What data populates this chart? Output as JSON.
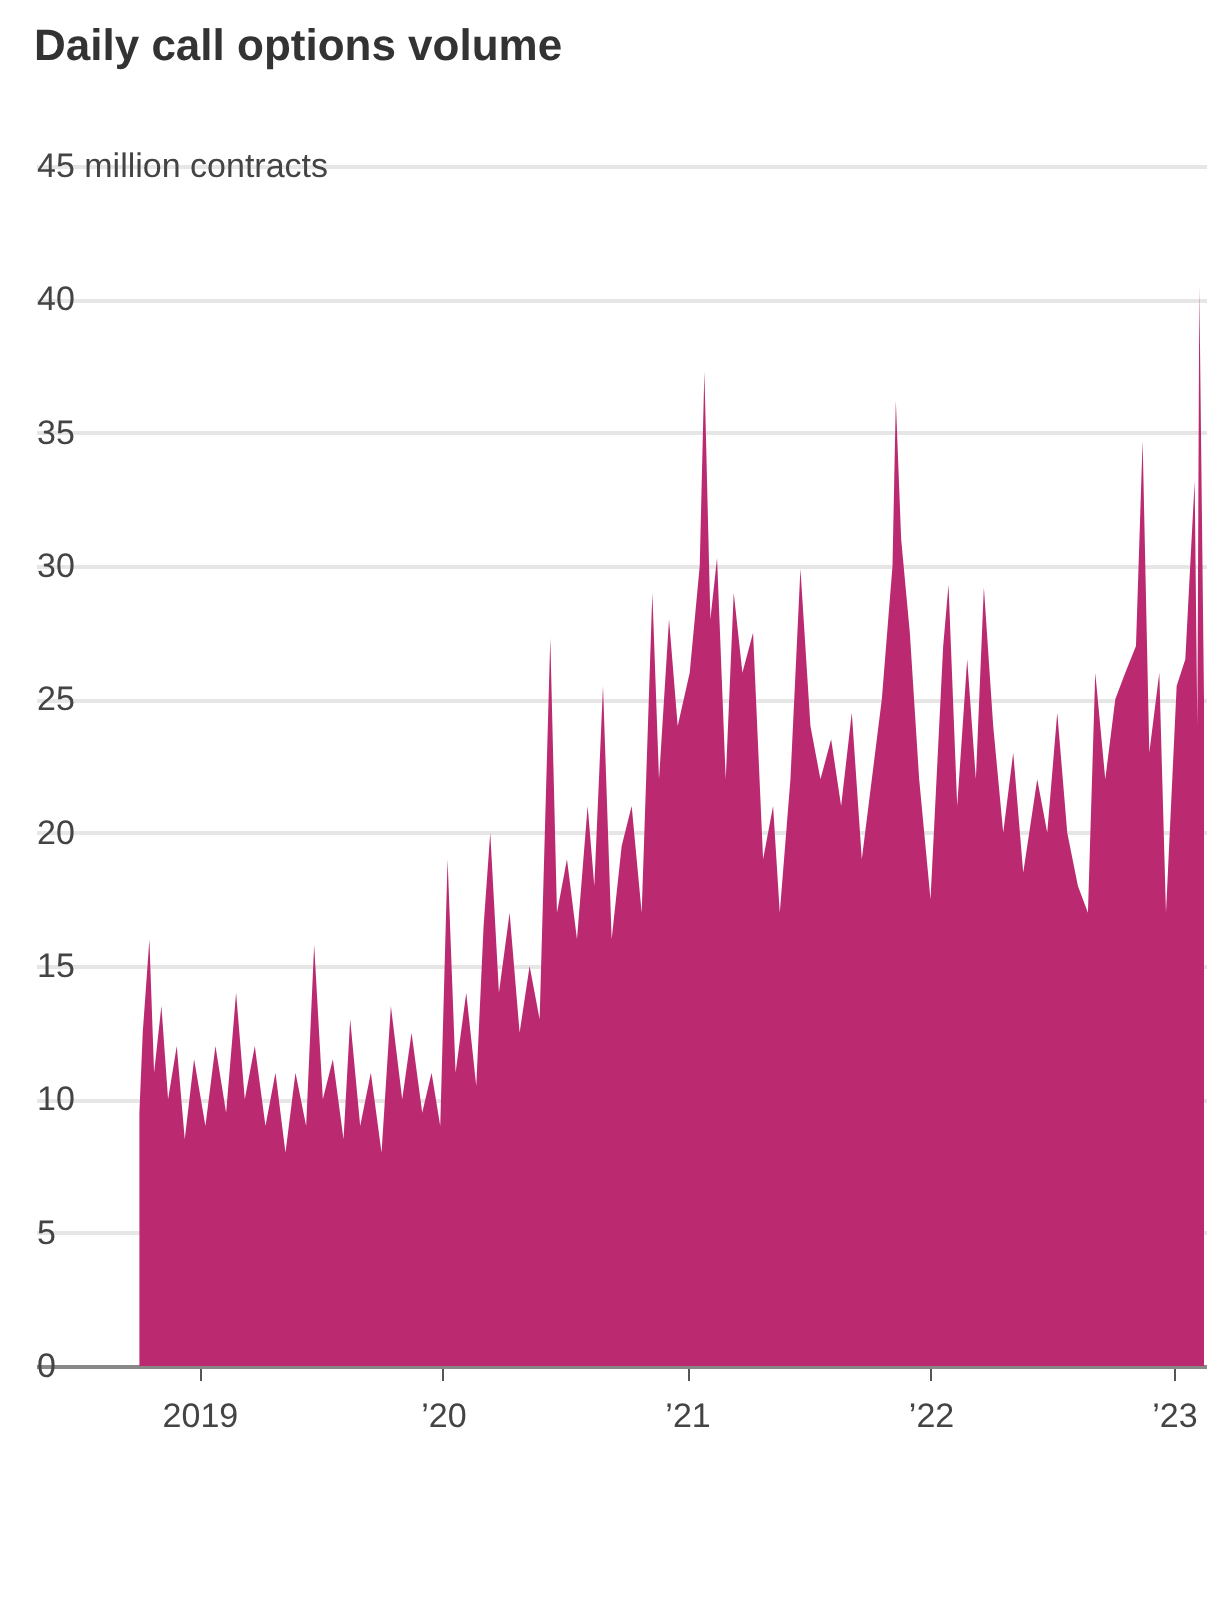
{
  "chart_data": {
    "type": "area",
    "title": "Daily call options volume",
    "x": [
      "2018-10-03",
      "2018-10-08",
      "2018-10-18",
      "2018-10-25",
      "2018-11-05",
      "2018-11-15",
      "2018-11-28",
      "2018-12-10",
      "2018-12-24",
      "2019-01-10",
      "2019-01-25",
      "2019-02-10",
      "2019-02-25",
      "2019-03-10",
      "2019-03-25",
      "2019-04-10",
      "2019-04-25",
      "2019-05-10",
      "2019-05-25",
      "2019-06-10",
      "2019-06-22",
      "2019-07-05",
      "2019-07-20",
      "2019-08-05",
      "2019-08-15",
      "2019-08-30",
      "2019-09-15",
      "2019-10-01",
      "2019-10-15",
      "2019-11-01",
      "2019-11-15",
      "2019-12-01",
      "2019-12-15",
      "2019-12-28",
      "2020-01-08",
      "2020-01-20",
      "2020-02-05",
      "2020-02-20",
      "2020-03-02",
      "2020-03-12",
      "2020-03-25",
      "2020-04-10",
      "2020-04-25",
      "2020-05-10",
      "2020-05-25",
      "2020-06-10",
      "2020-06-20",
      "2020-07-05",
      "2020-07-20",
      "2020-08-05",
      "2020-08-15",
      "2020-08-28",
      "2020-09-10",
      "2020-09-25",
      "2020-10-10",
      "2020-10-25",
      "2020-11-10",
      "2020-11-20",
      "2020-12-05",
      "2020-12-18",
      "2021-01-05",
      "2021-01-20",
      "2021-01-27",
      "2021-02-05",
      "2021-02-15",
      "2021-02-28",
      "2021-03-12",
      "2021-03-25",
      "2021-04-10",
      "2021-04-25",
      "2021-05-10",
      "2021-05-20",
      "2021-06-05",
      "2021-06-20",
      "2021-07-05",
      "2021-07-20",
      "2021-08-05",
      "2021-08-20",
      "2021-09-05",
      "2021-09-20",
      "2021-10-05",
      "2021-10-20",
      "2021-11-05",
      "2021-11-10",
      "2021-11-18",
      "2021-12-01",
      "2021-12-15",
      "2022-01-01",
      "2022-01-20",
      "2022-01-28",
      "2022-02-10",
      "2022-02-25",
      "2022-03-10",
      "2022-03-22",
      "2022-04-05",
      "2022-04-20",
      "2022-05-05",
      "2022-05-20",
      "2022-06-10",
      "2022-06-25",
      "2022-07-10",
      "2022-07-25",
      "2022-08-10",
      "2022-08-25",
      "2022-09-05",
      "2022-09-20",
      "2022-10-05",
      "2022-10-20",
      "2022-11-05",
      "2022-11-15",
      "2022-11-25",
      "2022-12-10",
      "2022-12-20",
      "2023-01-05",
      "2023-01-18",
      "2023-02-01",
      "2023-02-05",
      "2023-02-08",
      "2023-02-15"
    ],
    "series": [
      {
        "color": "#bb2a70",
        "values": [
          9.5,
          12.5,
          16,
          11,
          13.5,
          10,
          12,
          8.5,
          11.5,
          9,
          12,
          9.5,
          14,
          10,
          12,
          9,
          11,
          8,
          11,
          9,
          15.8,
          10,
          11.5,
          8.5,
          13,
          9,
          11,
          8,
          13.5,
          10,
          12.5,
          9.5,
          11,
          9,
          19,
          11,
          14,
          10.5,
          16.5,
          20,
          14,
          17,
          12.5,
          15,
          13,
          27.3,
          17,
          19,
          16,
          21,
          18,
          25.5,
          16,
          19.5,
          21,
          17,
          29,
          22,
          28,
          24,
          26,
          30,
          37.3,
          28,
          30.3,
          22,
          29,
          26,
          27.5,
          19,
          21,
          17,
          22,
          29.9,
          24,
          22,
          23.5,
          21,
          24.5,
          19,
          22,
          25,
          30,
          36.2,
          31,
          27.5,
          22,
          17.5,
          27,
          29.3,
          21,
          26.5,
          22,
          29.2,
          24,
          20,
          23,
          18.5,
          22,
          20,
          24.5,
          20,
          18,
          17,
          26,
          22,
          25,
          26,
          27,
          34.7,
          23,
          26,
          17,
          25.5,
          26.5,
          33.2,
          24,
          40.5,
          25
        ]
      }
    ],
    "xlim": [
      "2018-05-01",
      "2023-02-18"
    ],
    "xticks": [
      {
        "value": "2019-01-01",
        "label": "2019"
      },
      {
        "value": "2020-01-01",
        "label": "’20"
      },
      {
        "value": "2021-01-01",
        "label": "’21"
      },
      {
        "value": "2022-01-01",
        "label": "’22"
      },
      {
        "value": "2023-01-01",
        "label": "’23"
      }
    ],
    "ylim": [
      0,
      45
    ],
    "yticks": [
      0,
      5,
      10,
      15,
      20,
      25,
      30,
      35,
      40,
      {
        "value": 45,
        "label": "45 million contracts"
      }
    ],
    "grid": "y"
  }
}
